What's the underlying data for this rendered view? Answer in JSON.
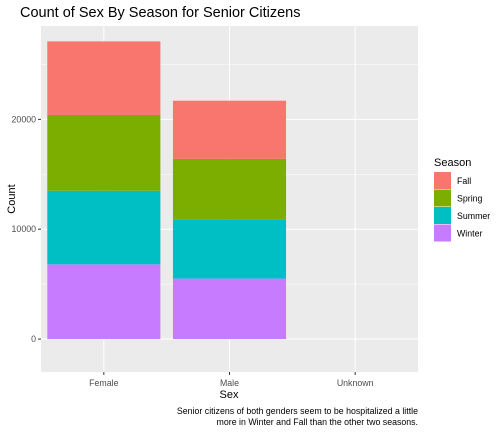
{
  "chart_data": {
    "type": "bar",
    "stacked": true,
    "title": "Count of Sex By Season for Senior Citizens",
    "xlabel": "Sex",
    "ylabel": "Count",
    "categories": [
      "Female",
      "Male",
      "Unknown"
    ],
    "series": [
      {
        "name": "Fall",
        "color": "#F8766D",
        "values": [
          6700,
          5300,
          0
        ]
      },
      {
        "name": "Spring",
        "color": "#7CAE00",
        "values": [
          6900,
          5500,
          0
        ]
      },
      {
        "name": "Summer",
        "color": "#00BFC4",
        "values": [
          6700,
          5400,
          0
        ]
      },
      {
        "name": "Winter",
        "color": "#C77CFF",
        "values": [
          6800,
          5500,
          0
        ]
      }
    ],
    "ylim": [
      -3000,
      28500
    ],
    "yticks": [
      0,
      10000,
      20000
    ],
    "ytick_labels": [
      "0",
      "10000",
      "20000"
    ],
    "grid": true,
    "panel_background": "#EBEBEB",
    "legend": {
      "title": "Season",
      "position": "right",
      "entries": [
        "Fall",
        "Spring",
        "Summer",
        "Winter"
      ]
    },
    "caption": [
      "Senior citizens of both genders seem to be hospitalized a little",
      "more in Winter and Fall than the other two seasons."
    ]
  }
}
